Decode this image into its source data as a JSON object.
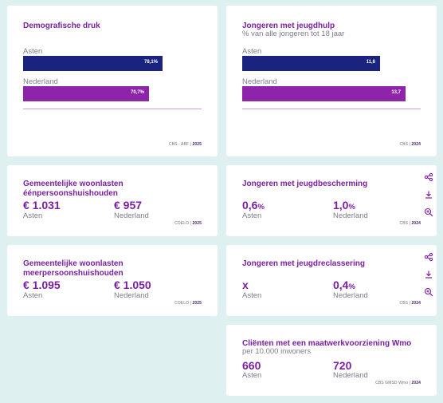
{
  "cards": {
    "demografische_druk": {
      "title": "Demografische druk",
      "bars": [
        {
          "label": "Asten",
          "value": 78.1,
          "value_label": "78,1%"
        },
        {
          "label": "Nederland",
          "value": 70.7,
          "value_label": "70,7%"
        }
      ],
      "bar_max": 100,
      "source_prefix": "CBS - ABF |",
      "source_year": "2025"
    },
    "jongeren_jeugdhulp": {
      "title": "Jongeren met jeugdhulp",
      "subtitle": "% van alle jongeren tot 18 jaar",
      "bars": [
        {
          "label": "Asten",
          "value": 11.6,
          "value_label": "11,6"
        },
        {
          "label": "Nederland",
          "value": 13.7,
          "value_label": "13,7"
        }
      ],
      "bar_max": 15,
      "source_prefix": "CBS |",
      "source_year": "2024"
    },
    "woonlasten_een": {
      "title": "Gemeentelijke woonlasten éénpersoonshuishouden",
      "left_value": "€ 1.031",
      "left_place": "Asten",
      "right_value": "€ 957",
      "right_place": "Nederland",
      "source_prefix": "COELO |",
      "source_year": "2025"
    },
    "jeugdbescherming": {
      "title": "Jongeren met jeugdbescherming",
      "left_value": "0,6",
      "left_unit": "%",
      "left_place": "Asten",
      "right_value": "1,0",
      "right_unit": "%",
      "right_place": "Nederland",
      "source_prefix": "CBS |",
      "source_year": "2024"
    },
    "woonlasten_meer": {
      "title": "Gemeentelijke woonlasten meerpersoonshuishouden",
      "left_value": "€ 1.095",
      "left_place": "Asten",
      "right_value": "€ 1.050",
      "right_place": "Nederland",
      "source_prefix": "COELO |",
      "source_year": "2025"
    },
    "jeugdreclassering": {
      "title": "Jongeren met jeugdreclassering",
      "left_value": "x",
      "left_place": "Asten",
      "right_value": "0,4",
      "right_unit": "%",
      "right_place": "Nederland",
      "source_prefix": "CBS |",
      "source_year": "2024"
    },
    "wmo": {
      "title": "Cliënten met een maatwerkvoorziening Wmo",
      "subtitle": "per 10.000 inwoners",
      "left_value": "660",
      "left_place": "Asten",
      "right_value": "720",
      "right_place": "Nederland",
      "source_prefix": "CBS GMSD Wmo |",
      "source_year": "2024"
    }
  },
  "icons": [
    "share-icon",
    "download-icon",
    "zoom-in-icon"
  ],
  "colors": {
    "accent": "#7b1fa2",
    "bar_local": "#1a237e",
    "bar_national": "#8e24aa",
    "background": "#dff0f1"
  }
}
